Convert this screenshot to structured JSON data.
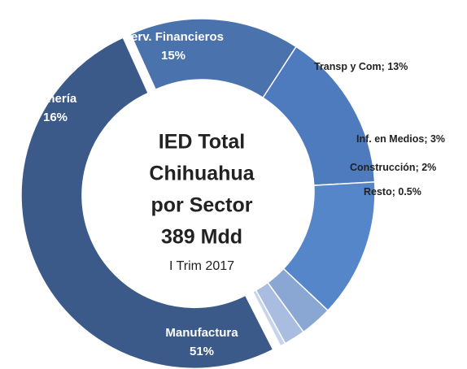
{
  "chart_data": {
    "type": "donut",
    "title_lines": [
      "IED Total",
      "Chihuahua",
      "por Sector",
      "389 Mdd"
    ],
    "subtitle": "I Trim 2017",
    "categories": [
      "Manufactura",
      "Minería",
      "Serv. Financieros",
      "Transp y Com",
      "Inf. en Medios",
      "Construcción",
      "Resto"
    ],
    "values": [
      51,
      16,
      15,
      13,
      3,
      2,
      0.5
    ],
    "value_labels": [
      "51%",
      "16%",
      "15%",
      "13%",
      "3%",
      "2%",
      "0.5%"
    ],
    "label_separator": "; ",
    "colors": [
      "#3b5a8a",
      "#4a72ad",
      "#4e7bbd",
      "#5586c9",
      "#8aa6d2",
      "#a9bde1",
      "#c6d4ed"
    ]
  }
}
